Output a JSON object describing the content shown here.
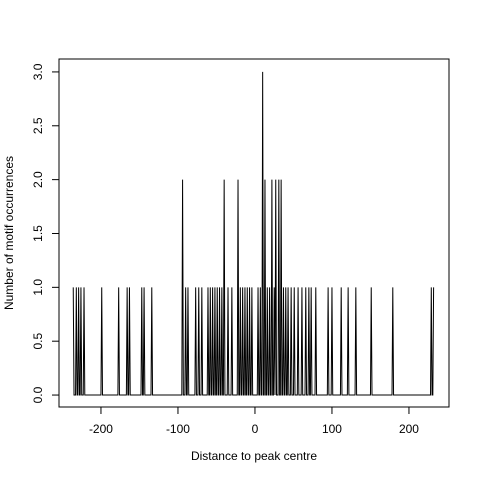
{
  "chart_data": {
    "type": "line",
    "xlabel": "Distance to peak centre",
    "ylabel": "Number of motif occurrences",
    "color": "#000000",
    "xlim": [
      -254.5,
      252.0
    ],
    "ylim": [
      -0.111,
      3.12
    ],
    "xticks": [
      -200,
      -100,
      0,
      100,
      200
    ],
    "yticks": [
      {
        "value": 0,
        "label": "0.0"
      },
      0.5,
      {
        "value": 1,
        "label": "1.0"
      },
      1.5,
      {
        "value": 2,
        "label": "2.0"
      },
      2.5,
      {
        "value": 3,
        "label": "3.0"
      }
    ],
    "x": [
      -236,
      -235,
      -233,
      -232,
      -231,
      -230,
      -229,
      -228,
      -227,
      -226,
      -225,
      -223,
      -222,
      -221,
      -200,
      -199,
      -198,
      -178,
      -177,
      -176,
      -167,
      -166,
      -165,
      -164,
      -163,
      -162,
      -148,
      -147,
      -146,
      -145,
      -144,
      -143,
      -135,
      -134,
      -133,
      -95,
      -94,
      -93,
      -91,
      -90,
      -89,
      -88,
      -87,
      -86,
      -78,
      -77,
      -76,
      -74,
      -73,
      -72,
      -70,
      -69,
      -68,
      -62,
      -61,
      -60,
      -59,
      -58,
      -57,
      -56,
      -55,
      -54,
      -53,
      -52,
      -51,
      -50,
      -49,
      -48,
      -47,
      -46,
      -45,
      -44,
      -43,
      -42,
      -41,
      -40,
      -39,
      -36,
      -35,
      -34,
      -31,
      -30,
      -29,
      -23,
      -22,
      -21,
      -20,
      -19,
      -18,
      -17,
      -16,
      -15,
      -14,
      -13,
      -12,
      -11,
      -10,
      -9,
      -8,
      -7,
      -6,
      -5,
      -4,
      -3,
      3,
      4,
      5,
      6,
      7,
      8,
      9,
      10,
      11,
      12,
      13,
      14,
      15,
      16,
      17,
      18,
      19,
      20,
      21,
      22,
      23,
      24,
      25,
      26,
      27,
      28,
      30,
      31,
      32,
      33,
      34,
      35,
      36,
      37,
      38,
      39,
      40,
      41,
      42,
      43,
      44,
      46,
      47,
      48,
      50,
      51,
      52,
      55,
      56,
      57,
      60,
      61,
      62,
      65,
      66,
      67,
      69,
      70,
      71,
      72,
      73,
      74,
      78,
      79,
      80,
      94,
      95,
      96,
      99,
      100,
      101,
      111,
      112,
      113,
      120,
      121,
      122,
      130,
      131,
      132,
      150,
      151,
      152,
      178,
      179,
      180,
      228,
      229,
      230,
      231,
      232
    ],
    "values": [
      1,
      0,
      0,
      1,
      0,
      0,
      1,
      0,
      0,
      1,
      0,
      0,
      1,
      0,
      0,
      1,
      0,
      0,
      1,
      0,
      0,
      1,
      0,
      0,
      1,
      0,
      0,
      1,
      0,
      0,
      1,
      0,
      0,
      1,
      0,
      0,
      2,
      0,
      0,
      1,
      0,
      0,
      1,
      0,
      0,
      1,
      0,
      0,
      1,
      0,
      0,
      1,
      0,
      0,
      1,
      0,
      0,
      1,
      0,
      0,
      1,
      0,
      0,
      1,
      0,
      0,
      1,
      0,
      0,
      1,
      0,
      0,
      1,
      0,
      0,
      2,
      0,
      0,
      1,
      0,
      0,
      1,
      0,
      0,
      2,
      0,
      0,
      1,
      0,
      0,
      1,
      0,
      0,
      1,
      0,
      0,
      1,
      0,
      0,
      1,
      0,
      0,
      1,
      0,
      0,
      1,
      0,
      0,
      1,
      0,
      0,
      3,
      0,
      0,
      2,
      0,
      0,
      1,
      0,
      0,
      1,
      0,
      0,
      2,
      0,
      0,
      1,
      0,
      2,
      0,
      0,
      2,
      0,
      0,
      2,
      0,
      0,
      1,
      0,
      0,
      1,
      0,
      0,
      1,
      0,
      0,
      1,
      0,
      0,
      1,
      0,
      0,
      1,
      0,
      0,
      1,
      0,
      0,
      1,
      0,
      0,
      1,
      0,
      0,
      1,
      0,
      0,
      1,
      0,
      0,
      1,
      0,
      0,
      1,
      0,
      0,
      1,
      0,
      0,
      1,
      0,
      0,
      1,
      0,
      0,
      1,
      0,
      0,
      1,
      0,
      0,
      1,
      0,
      0,
      1
    ]
  }
}
